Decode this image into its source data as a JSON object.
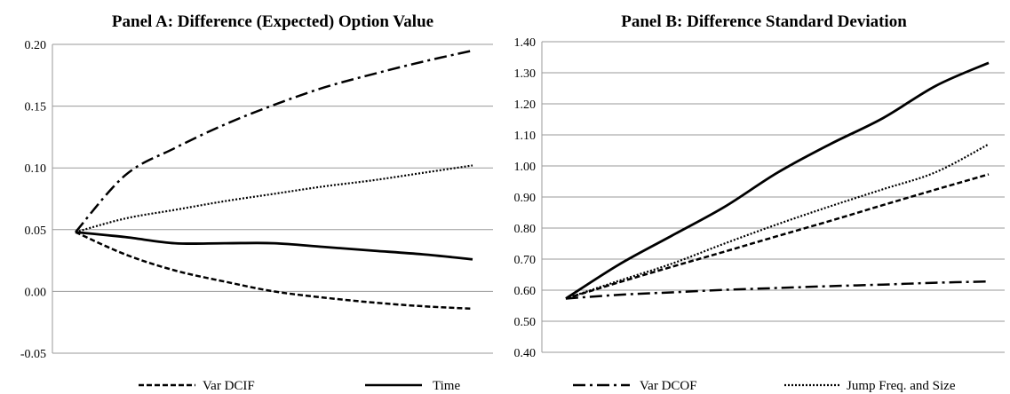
{
  "legend_entries": [
    {
      "label": "Var DCIF",
      "style": "dashed"
    },
    {
      "label": "Time",
      "style": "solid"
    },
    {
      "label": "Var DCOF",
      "style": "dashdot"
    },
    {
      "label": "Jump Freq. and Size",
      "style": "dotted"
    }
  ],
  "chart_data": [
    {
      "type": "line",
      "title": "Panel A: Difference (Expected) Option Value",
      "ylim": [
        -0.05,
        0.2
      ],
      "yticks": [
        "0.20",
        "0.15",
        "0.10",
        "0.05",
        "0.00",
        "-0.05"
      ],
      "ytick_values": [
        0.2,
        0.15,
        0.1,
        0.05,
        0.0,
        -0.05
      ],
      "grid": true,
      "x": [
        0,
        1,
        2,
        3,
        4,
        5,
        6,
        7,
        8
      ],
      "series": [
        {
          "name": "Var DCIF",
          "style": "dashed",
          "values": [
            0.048,
            0.03,
            0.017,
            0.008,
            0.0,
            -0.005,
            -0.009,
            -0.012,
            -0.014
          ]
        },
        {
          "name": "Time",
          "style": "solid",
          "values": [
            0.048,
            0.044,
            0.039,
            0.039,
            0.039,
            0.036,
            0.033,
            0.03,
            0.026
          ]
        },
        {
          "name": "Var DCOF",
          "style": "dashdot",
          "values": [
            0.048,
            0.094,
            0.116,
            0.135,
            0.151,
            0.165,
            0.176,
            0.186,
            0.195
          ]
        },
        {
          "name": "Jump Freq. and Size",
          "style": "dotted",
          "values": [
            0.048,
            0.059,
            0.066,
            0.073,
            0.079,
            0.085,
            0.09,
            0.096,
            0.102
          ]
        }
      ]
    },
    {
      "type": "line",
      "title": "Panel B: Difference Standard Deviation",
      "ylim": [
        0.4,
        1.4
      ],
      "yticks": [
        "1.40",
        "1.30",
        "1.20",
        "1.10",
        "1.00",
        "0.90",
        "0.80",
        "0.70",
        "0.60",
        "0.50",
        "0.40"
      ],
      "ytick_values": [
        1.4,
        1.3,
        1.2,
        1.1,
        1.0,
        0.9,
        0.8,
        0.7,
        0.6,
        0.5,
        0.4
      ],
      "grid": true,
      "x": [
        0,
        1,
        2,
        3,
        4,
        5,
        6,
        7,
        8
      ],
      "series": [
        {
          "name": "Var DCIF",
          "style": "dashed",
          "values": [
            0.573,
            0.625,
            0.675,
            0.724,
            0.774,
            0.823,
            0.874,
            0.924,
            0.973
          ]
        },
        {
          "name": "Time",
          "style": "solid",
          "values": [
            0.573,
            0.682,
            0.775,
            0.868,
            0.978,
            1.07,
            1.154,
            1.258,
            1.332
          ]
        },
        {
          "name": "Var DCOF",
          "style": "dashdot",
          "values": [
            0.573,
            0.585,
            0.593,
            0.601,
            0.607,
            0.613,
            0.618,
            0.624,
            0.628
          ]
        },
        {
          "name": "Jump Freq. and Size",
          "style": "dotted",
          "values": [
            0.573,
            0.63,
            0.685,
            0.75,
            0.812,
            0.87,
            0.925,
            0.98,
            1.07
          ]
        }
      ]
    }
  ]
}
